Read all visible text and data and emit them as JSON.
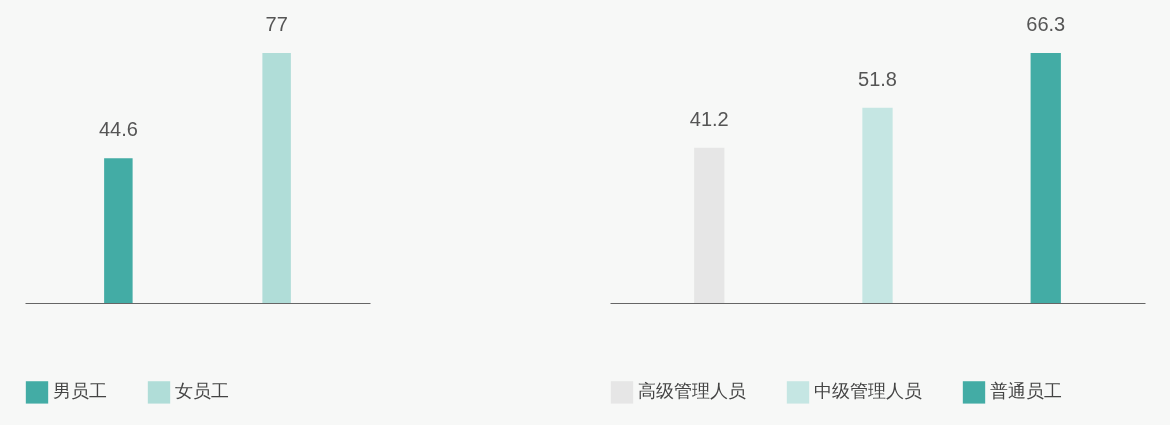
{
  "chart_data": [
    {
      "type": "bar",
      "stacked": true,
      "categories": [
        null,
        null
      ],
      "data_labels": true,
      "legend": "bottom",
      "series": [
        {
          "name": "男员工",
          "color": "#43aca5",
          "values": [
            44.6,
            null
          ]
        },
        {
          "name": "女员工",
          "color": "#b0ddd8",
          "values": [
            null,
            77
          ]
        }
      ]
    },
    {
      "type": "bar",
      "stacked": true,
      "categories": [
        null,
        null,
        null
      ],
      "data_labels": true,
      "legend": "bottom",
      "series": [
        {
          "name": "高级管理人员",
          "color": "#e6e6e6",
          "values": [
            41.2,
            null,
            null
          ]
        },
        {
          "name": "中级管理人员",
          "color": "#c5e6e3",
          "values": [
            null,
            51.8,
            null
          ]
        },
        {
          "name": "普通员工",
          "color": "#43aca5",
          "values": [
            null,
            null,
            66.3
          ]
        }
      ]
    }
  ]
}
